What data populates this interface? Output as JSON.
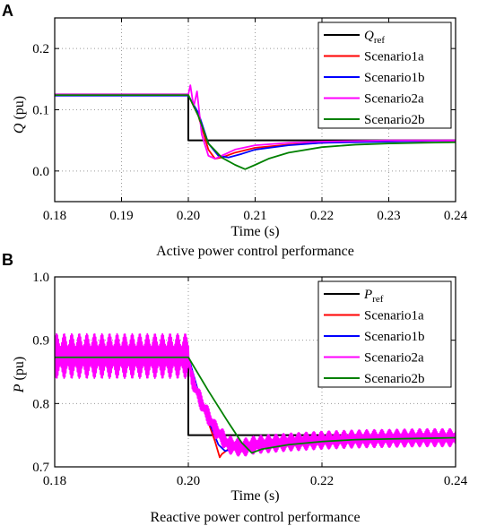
{
  "figure": {
    "panels": [
      {
        "letter": "A",
        "caption": "Active power control performance"
      },
      {
        "letter": "B",
        "caption": "Reactive power control performance"
      }
    ]
  },
  "colors": {
    "ref": "#000000",
    "Scenario1a": "#ff0000",
    "Scenario1b": "#0000ff",
    "Scenario2a": "#ff00ff",
    "Scenario2b": "#008000"
  },
  "chart_data": [
    {
      "type": "line",
      "xlabel": "Time (s)",
      "ylabel_main": "Q",
      "ylabel_unit": "(pu)",
      "xlim": [
        0.18,
        0.24
      ],
      "ylim": [
        -0.05,
        0.25
      ],
      "xticks": [
        "0.18",
        "0.19",
        "0.20",
        "0.21",
        "0.22",
        "0.23",
        "0.24"
      ],
      "yticks": [
        "0.0",
        "0.1",
        "0.2"
      ],
      "grid": true,
      "legend_position": "top-right",
      "series": [
        {
          "name": "Q",
          "name_sub": "ref",
          "key": "ref",
          "x": [
            0.18,
            0.2,
            0.2,
            0.24
          ],
          "y": [
            0.125,
            0.125,
            0.05,
            0.05
          ]
        },
        {
          "name": "Scenario1a",
          "key": "Scenario1a",
          "x": [
            0.18,
            0.2,
            0.2015,
            0.203,
            0.204,
            0.205,
            0.207,
            0.21,
            0.215,
            0.22,
            0.225,
            0.23,
            0.235,
            0.24
          ],
          "y": [
            0.124,
            0.124,
            0.09,
            0.035,
            0.02,
            0.022,
            0.03,
            0.038,
            0.043,
            0.046,
            0.048,
            0.049,
            0.049,
            0.05
          ]
        },
        {
          "name": "Scenario1b",
          "key": "Scenario1b",
          "x": [
            0.18,
            0.2,
            0.2015,
            0.203,
            0.2045,
            0.206,
            0.208,
            0.21,
            0.215,
            0.22,
            0.225,
            0.23,
            0.235,
            0.24
          ],
          "y": [
            0.123,
            0.123,
            0.095,
            0.045,
            0.025,
            0.022,
            0.028,
            0.035,
            0.042,
            0.046,
            0.047,
            0.048,
            0.049,
            0.05
          ]
        },
        {
          "name": "Scenario2a",
          "key": "Scenario2a",
          "x": [
            0.18,
            0.2,
            0.2003,
            0.2008,
            0.2013,
            0.202,
            0.203,
            0.204,
            0.205,
            0.207,
            0.21,
            0.215,
            0.22,
            0.225,
            0.23,
            0.235,
            0.24
          ],
          "y": [
            0.125,
            0.125,
            0.14,
            0.105,
            0.13,
            0.06,
            0.025,
            0.02,
            0.025,
            0.035,
            0.042,
            0.046,
            0.048,
            0.049,
            0.05,
            0.05,
            0.05
          ]
        },
        {
          "name": "Scenario2b",
          "key": "Scenario2b",
          "x": [
            0.18,
            0.2,
            0.2015,
            0.203,
            0.205,
            0.207,
            0.2085,
            0.21,
            0.212,
            0.215,
            0.22,
            0.225,
            0.23,
            0.235,
            0.24
          ],
          "y": [
            0.124,
            0.124,
            0.09,
            0.045,
            0.022,
            0.01,
            0.003,
            0.01,
            0.02,
            0.03,
            0.039,
            0.043,
            0.045,
            0.046,
            0.047
          ]
        }
      ]
    },
    {
      "type": "line",
      "xlabel": "Time (s)",
      "ylabel_main": "P",
      "ylabel_unit": "(pu)",
      "xlim": [
        0.18,
        0.24
      ],
      "ylim": [
        0.7,
        1.0
      ],
      "xticks": [
        "0.18",
        "0.20",
        "0.22",
        "0.24"
      ],
      "yticks": [
        "0.7",
        "0.8",
        "0.9",
        "1.0"
      ],
      "grid": true,
      "legend_position": "top-right",
      "series": [
        {
          "name": "P",
          "name_sub": "ref",
          "key": "ref",
          "x": [
            0.18,
            0.2,
            0.2,
            0.24
          ],
          "y": [
            0.875,
            0.875,
            0.75,
            0.75
          ]
        },
        {
          "name": "Scenario1a",
          "key": "Scenario1a",
          "x": [
            0.18,
            0.2,
            0.202,
            0.204,
            0.2047,
            0.205,
            0.206,
            0.208,
            0.21,
            0.215,
            0.22,
            0.225,
            0.23,
            0.235,
            0.24
          ],
          "y": [
            0.872,
            0.872,
            0.8,
            0.74,
            0.715,
            0.72,
            0.728,
            0.733,
            0.735,
            0.739,
            0.742,
            0.744,
            0.745,
            0.746,
            0.746
          ]
        },
        {
          "name": "Scenario1b",
          "key": "Scenario1b",
          "x": [
            0.18,
            0.2,
            0.202,
            0.2045,
            0.2055,
            0.207,
            0.21,
            0.215,
            0.22,
            0.225,
            0.23,
            0.235,
            0.24
          ],
          "y": [
            0.874,
            0.874,
            0.8,
            0.735,
            0.725,
            0.73,
            0.735,
            0.74,
            0.743,
            0.744,
            0.745,
            0.746,
            0.746
          ]
        },
        {
          "name": "Scenario2a",
          "key": "Scenario2a",
          "noise": 0.035,
          "x": [
            0.18,
            0.2,
            0.2005,
            0.202,
            0.204,
            0.206,
            0.208,
            0.21,
            0.215,
            0.22,
            0.225,
            0.23,
            0.235,
            0.24
          ],
          "y": [
            0.875,
            0.875,
            0.84,
            0.8,
            0.76,
            0.735,
            0.73,
            0.735,
            0.739,
            0.742,
            0.744,
            0.745,
            0.746,
            0.746
          ]
        },
        {
          "name": "Scenario2b",
          "key": "Scenario2b",
          "x": [
            0.18,
            0.2,
            0.203,
            0.206,
            0.208,
            0.2095,
            0.211,
            0.215,
            0.22,
            0.225,
            0.23,
            0.235,
            0.24
          ],
          "y": [
            0.873,
            0.873,
            0.82,
            0.77,
            0.738,
            0.722,
            0.728,
            0.735,
            0.74,
            0.743,
            0.744,
            0.745,
            0.746
          ]
        }
      ]
    }
  ]
}
